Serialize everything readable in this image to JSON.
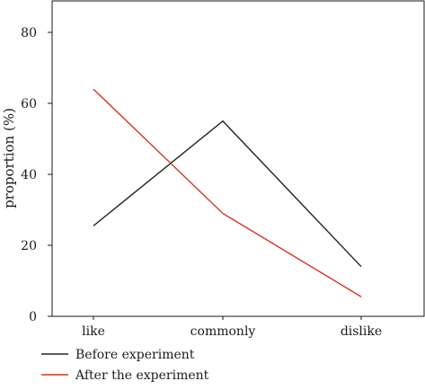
{
  "chart_data": {
    "type": "line",
    "categories": [
      "like",
      "commonly",
      "dislike"
    ],
    "series": [
      {
        "name": "Before experiment",
        "values": [
          25.5,
          55,
          14
        ],
        "color": "#1a2b1a"
      },
      {
        "name": "After the experiment",
        "values": [
          64,
          29,
          5.5
        ],
        "color": "#d6341f"
      }
    ],
    "xlabel": "",
    "ylabel": "proportion (%)",
    "ylim": [
      0,
      80
    ],
    "yticks": [
      0,
      20,
      40,
      60,
      80
    ],
    "grid": false,
    "legend_position": "bottom-left"
  }
}
